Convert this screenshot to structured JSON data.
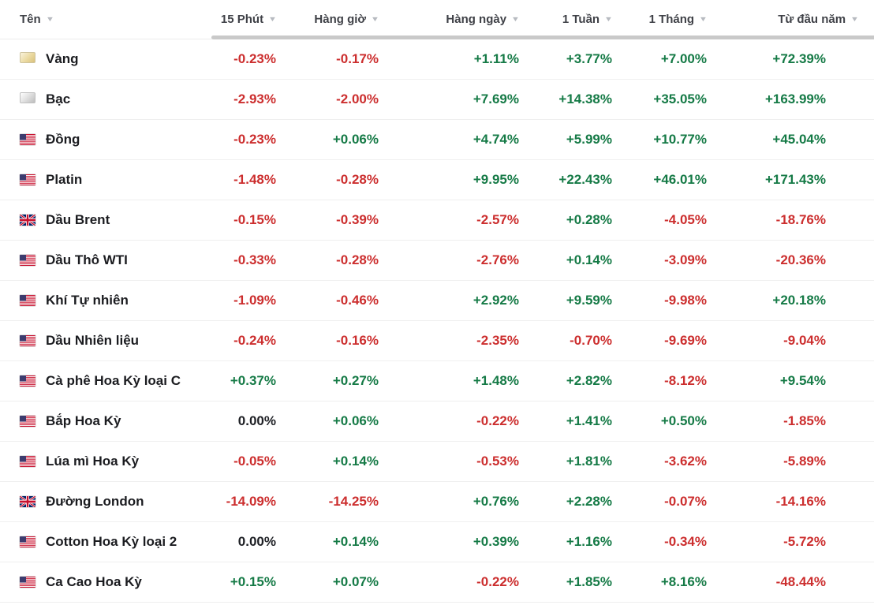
{
  "colors": {
    "positive": "#157a46",
    "negative": "#cc2e2e",
    "neutral": "#1d1f24"
  },
  "icons": {
    "sort_indicator": "▼"
  },
  "table": {
    "columns": [
      {
        "label": "Tên"
      },
      {
        "label": "15 Phút"
      },
      {
        "label": "Hàng giờ"
      },
      {
        "label": "Hàng ngày"
      },
      {
        "label": "1 Tuần"
      },
      {
        "label": "1 Tháng"
      },
      {
        "label": "Từ đầu năm"
      }
    ],
    "rows": [
      {
        "name": "Vàng",
        "icon": "gold",
        "values": [
          "-0.23%",
          "-0.17%",
          "+1.11%",
          "+3.77%",
          "+7.00%",
          "+72.39%"
        ]
      },
      {
        "name": "Bạc",
        "icon": "silver",
        "values": [
          "-2.93%",
          "-2.00%",
          "+7.69%",
          "+14.38%",
          "+35.05%",
          "+163.99%"
        ]
      },
      {
        "name": "Đồng",
        "icon": "flag-us",
        "values": [
          "-0.23%",
          "+0.06%",
          "+4.74%",
          "+5.99%",
          "+10.77%",
          "+45.04%"
        ]
      },
      {
        "name": "Platin",
        "icon": "flag-us",
        "values": [
          "-1.48%",
          "-0.28%",
          "+9.95%",
          "+22.43%",
          "+46.01%",
          "+171.43%"
        ]
      },
      {
        "name": "Dầu Brent",
        "icon": "flag-uk",
        "values": [
          "-0.15%",
          "-0.39%",
          "-2.57%",
          "+0.28%",
          "-4.05%",
          "-18.76%"
        ]
      },
      {
        "name": "Dầu Thô WTI",
        "icon": "flag-us",
        "values": [
          "-0.33%",
          "-0.28%",
          "-2.76%",
          "+0.14%",
          "-3.09%",
          "-20.36%"
        ]
      },
      {
        "name": "Khí Tự nhiên",
        "icon": "flag-us",
        "values": [
          "-1.09%",
          "-0.46%",
          "+2.92%",
          "+9.59%",
          "-9.98%",
          "+20.18%"
        ]
      },
      {
        "name": "Dầu Nhiên liệu",
        "icon": "flag-us",
        "values": [
          "-0.24%",
          "-0.16%",
          "-2.35%",
          "-0.70%",
          "-9.69%",
          "-9.04%"
        ]
      },
      {
        "name": "Cà phê Hoa Kỳ loại C",
        "icon": "flag-us",
        "values": [
          "+0.37%",
          "+0.27%",
          "+1.48%",
          "+2.82%",
          "-8.12%",
          "+9.54%"
        ]
      },
      {
        "name": "Bắp Hoa Kỳ",
        "icon": "flag-us",
        "values": [
          "0.00%",
          "+0.06%",
          "-0.22%",
          "+1.41%",
          "+0.50%",
          "-1.85%"
        ]
      },
      {
        "name": "Lúa mì Hoa Kỳ",
        "icon": "flag-us",
        "values": [
          "-0.05%",
          "+0.14%",
          "-0.53%",
          "+1.81%",
          "-3.62%",
          "-5.89%"
        ]
      },
      {
        "name": "Đường London",
        "icon": "flag-uk",
        "values": [
          "-14.09%",
          "-14.25%",
          "+0.76%",
          "+2.28%",
          "-0.07%",
          "-14.16%"
        ]
      },
      {
        "name": "Cotton Hoa Kỳ loại 2",
        "icon": "flag-us",
        "values": [
          "0.00%",
          "+0.14%",
          "+0.39%",
          "+1.16%",
          "-0.34%",
          "-5.72%"
        ]
      },
      {
        "name": "Ca Cao Hoa Kỳ",
        "icon": "flag-us",
        "values": [
          "+0.15%",
          "+0.07%",
          "-0.22%",
          "+1.85%",
          "+8.16%",
          "-48.44%"
        ]
      }
    ]
  }
}
